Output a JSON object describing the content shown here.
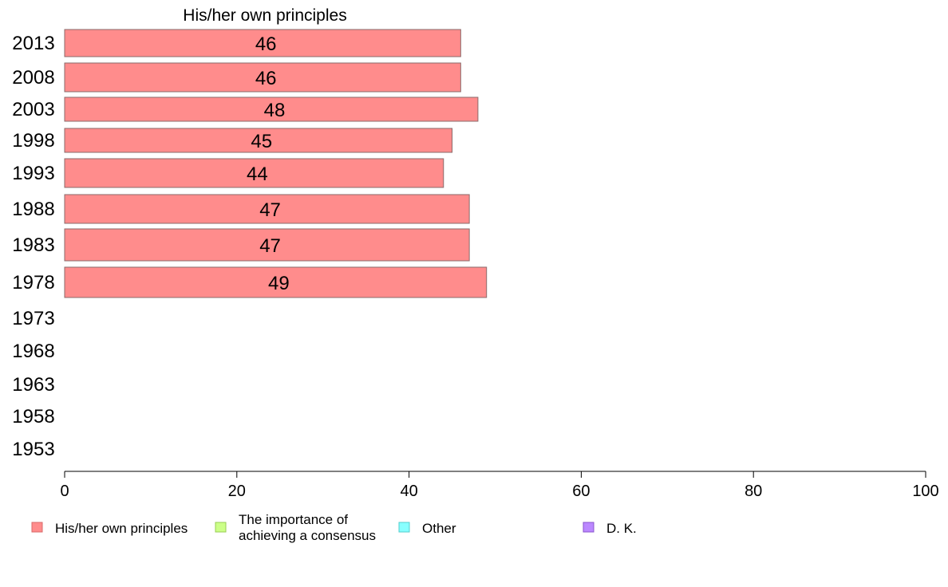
{
  "chart_data": {
    "type": "bar",
    "orientation": "horizontal",
    "title": "His/her own principles",
    "categories": [
      "2013",
      "2008",
      "2003",
      "1998",
      "1993",
      "1988",
      "1983",
      "1978",
      "1973",
      "1968",
      "1963",
      "1958",
      "1953"
    ],
    "series": [
      {
        "name": "His/her own principles",
        "color": "#ff8c8c",
        "values": [
          46,
          46,
          48,
          45,
          44,
          47,
          47,
          49,
          null,
          null,
          null,
          null,
          null
        ]
      }
    ],
    "xlim": [
      0,
      100
    ],
    "xticks": [
      0,
      20,
      40,
      60,
      80,
      100
    ],
    "grid": false,
    "legend": {
      "placement": "bottom",
      "items": [
        {
          "label": [
            "His/her own principles"
          ],
          "color": "#ff8c8c",
          "border": "#d96a6a"
        },
        {
          "label": [
            "The importance of",
            "achieving a consensus"
          ],
          "color": "#ccff88",
          "border": "#99cc55"
        },
        {
          "label": [
            "Other"
          ],
          "color": "#88ffff",
          "border": "#55cccc"
        },
        {
          "label": [
            "D. K."
          ],
          "color": "#bb88ff",
          "border": "#8855cc"
        }
      ]
    }
  }
}
